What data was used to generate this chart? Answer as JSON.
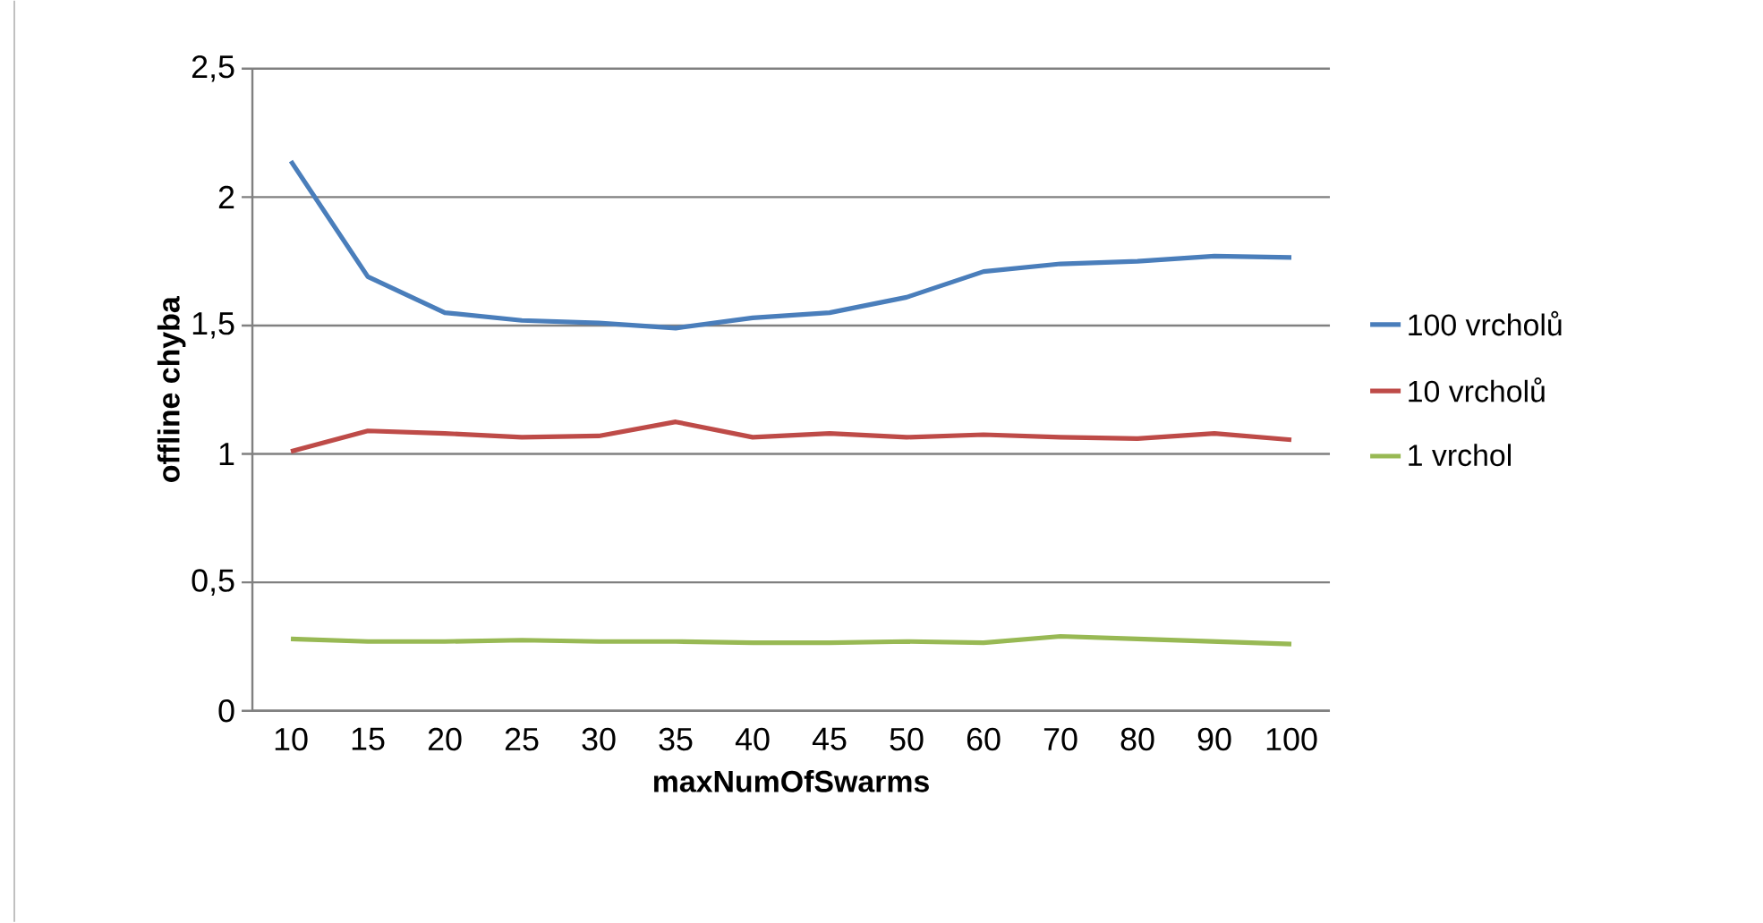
{
  "chart_data": {
    "type": "line",
    "xlabel": "maxNumOfSwarms",
    "ylabel": "offline chyba",
    "categories": [
      "10",
      "15",
      "20",
      "25",
      "30",
      "35",
      "40",
      "45",
      "50",
      "60",
      "70",
      "80",
      "90",
      "100"
    ],
    "series": [
      {
        "name": "100 vrcholů",
        "color": "#4a7ebb",
        "values": [
          2.14,
          1.69,
          1.55,
          1.52,
          1.51,
          1.49,
          1.53,
          1.55,
          1.61,
          1.71,
          1.74,
          1.75,
          1.77,
          1.765
        ]
      },
      {
        "name": "10 vrcholů",
        "color": "#be4b48",
        "values": [
          1.01,
          1.09,
          1.08,
          1.065,
          1.07,
          1.125,
          1.065,
          1.08,
          1.065,
          1.075,
          1.065,
          1.06,
          1.08,
          1.055
        ]
      },
      {
        "name": "1 vrchol",
        "color": "#98b954",
        "values": [
          0.28,
          0.27,
          0.27,
          0.275,
          0.27,
          0.27,
          0.265,
          0.265,
          0.27,
          0.265,
          0.29,
          0.28,
          0.27,
          0.26
        ]
      }
    ],
    "ylim": [
      0,
      2.5
    ],
    "yticks": [
      0,
      {
        "value": 0.5,
        "label": "0,5"
      },
      1,
      {
        "value": 1.5,
        "label": "1,5"
      },
      2,
      {
        "value": 2.5,
        "label": "2,5"
      }
    ],
    "grid": "y",
    "legend": "right",
    "marker": "none",
    "line_style": "solid"
  }
}
